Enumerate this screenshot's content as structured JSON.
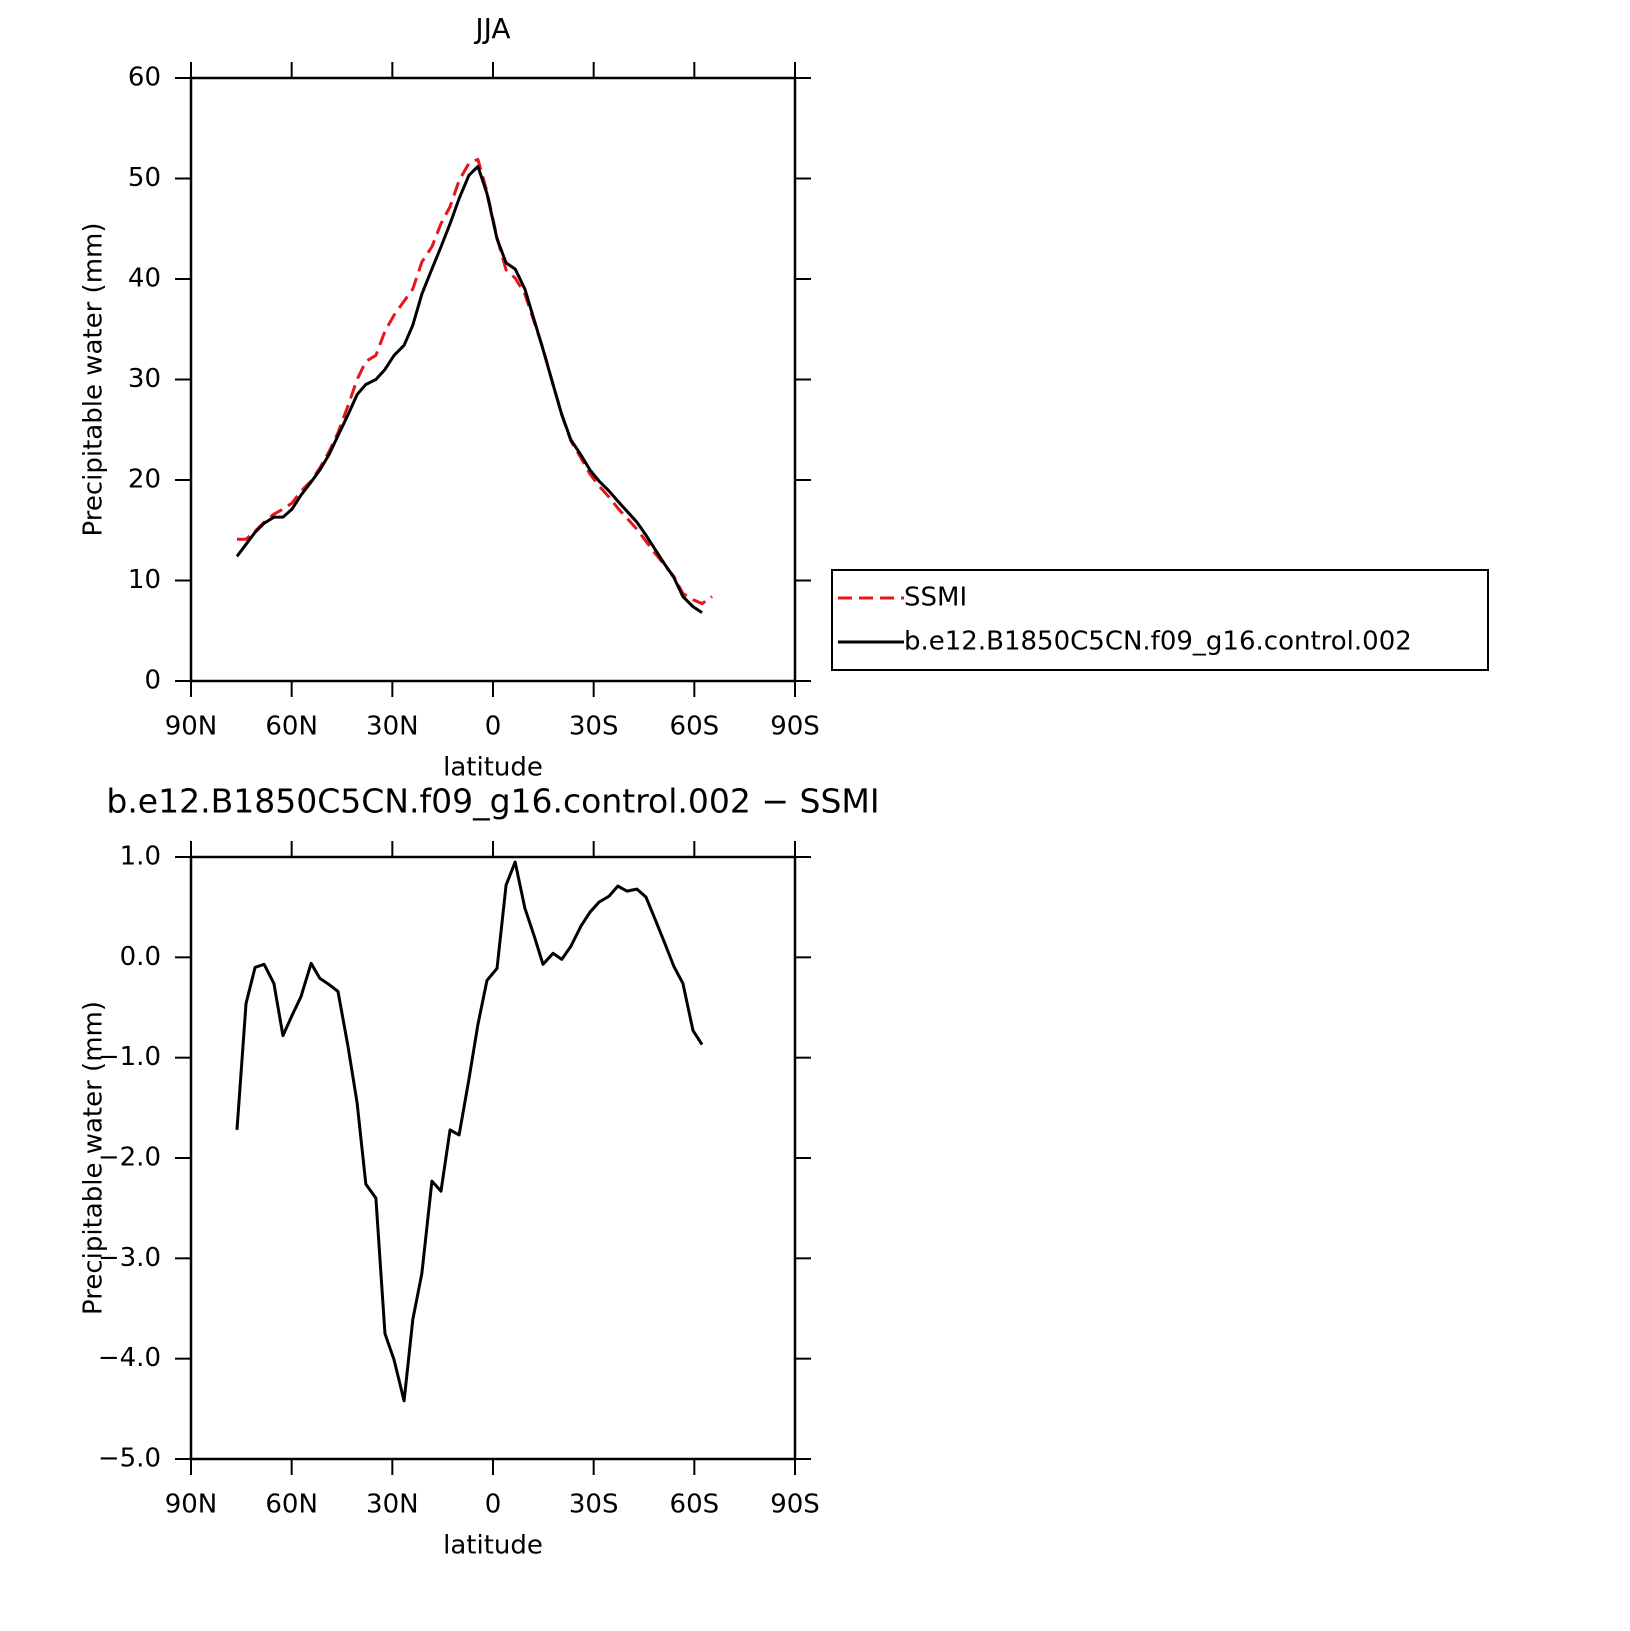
{
  "chart_data": [
    {
      "type": "line",
      "title": "JJA",
      "xlabel": "latitude",
      "ylabel": "Precipitable water (mm)",
      "xlim": [
        90,
        -90
      ],
      "xticks": [
        {
          "value": 90,
          "label": "90N"
        },
        {
          "value": 60,
          "label": "60N"
        },
        {
          "value": 30,
          "label": "30N"
        },
        0,
        {
          "value": -30,
          "label": "30S"
        },
        {
          "value": -60,
          "label": "60S"
        },
        {
          "value": -90,
          "label": "90S"
        }
      ],
      "ylim": [
        0,
        60
      ],
      "yticks": [
        0,
        10,
        20,
        30,
        40,
        50,
        60
      ],
      "legend": "right",
      "x": [
        76.3,
        73.6,
        70.9,
        68.2,
        65.3,
        62.6,
        59.9,
        57.2,
        54.2,
        51.6,
        48.9,
        46.2,
        43.2,
        40.5,
        37.9,
        34.9,
        32.2,
        29.5,
        26.5,
        23.9,
        21.2,
        18.2,
        15.5,
        12.8,
        10.1,
        7.2,
        4.5,
        1.8,
        -1.2,
        -3.9,
        -6.6,
        -9.5,
        -12.2,
        -14.9,
        -17.9,
        -20.5,
        -23.2,
        -26.2,
        -28.9,
        -31.6,
        -34.6,
        -37.2,
        -39.9,
        -42.9,
        -45.6,
        -48.3,
        -51.2,
        -53.9,
        -56.6,
        -59.6,
        -62.3,
        -65.3
      ],
      "series": [
        {
          "name": "SSMI",
          "color": "#e8141c",
          "dash": true,
          "values": [
            14.1,
            14.1,
            14.9,
            15.8,
            16.6,
            17.1,
            17.7,
            18.9,
            19.9,
            21.2,
            22.8,
            24.7,
            27.4,
            30.0,
            31.8,
            32.4,
            34.8,
            36.4,
            37.8,
            39.0,
            41.7,
            43.2,
            45.5,
            47.2,
            49.8,
            51.5,
            51.9,
            48.7,
            44.1,
            40.9,
            40.1,
            38.5,
            35.8,
            33.1,
            29.5,
            26.5,
            23.9,
            22.2,
            20.6,
            19.4,
            18.3,
            17.2,
            16.2,
            15.1,
            13.9,
            12.7,
            11.5,
            10.4,
            8.7,
            8.1,
            7.7,
            8.4
          ]
        },
        {
          "name": "b.e12.B1850C5CN.f09_g16.control.002",
          "color": "#000000",
          "dash": false,
          "values": [
            12.4,
            13.6,
            14.8,
            15.7,
            16.3,
            16.3,
            17.1,
            18.5,
            19.8,
            21.0,
            22.5,
            24.4,
            26.5,
            28.5,
            29.5,
            30.0,
            31.0,
            32.4,
            33.4,
            35.4,
            38.5,
            41.0,
            43.2,
            45.5,
            48.0,
            50.3,
            51.2,
            48.5,
            44.0,
            41.6,
            41.0,
            39.0,
            36.0,
            33.0,
            29.5,
            26.5,
            24.0,
            22.5,
            21.0,
            19.9,
            18.9,
            17.9,
            16.9,
            15.8,
            14.5,
            13.1,
            11.6,
            10.3,
            8.4,
            7.4,
            6.8,
            null
          ]
        }
      ]
    },
    {
      "type": "line",
      "title": "b.e12.B1850C5CN.f09_g16.control.002 − SSMI",
      "xlabel": "latitude",
      "ylabel": "Precipitable water (mm)",
      "xlim": [
        90,
        -90
      ],
      "xticks": [
        {
          "value": 90,
          "label": "90N"
        },
        {
          "value": 60,
          "label": "60N"
        },
        {
          "value": 30,
          "label": "30N"
        },
        0,
        {
          "value": -30,
          "label": "30S"
        },
        {
          "value": -60,
          "label": "60S"
        },
        {
          "value": -90,
          "label": "90S"
        }
      ],
      "ylim": [
        -5,
        1
      ],
      "yticks": [
        {
          "value": -5,
          "label": "−5.0"
        },
        {
          "value": -4,
          "label": "−4.0"
        },
        {
          "value": -3,
          "label": "−3.0"
        },
        {
          "value": -2,
          "label": "−2.0"
        },
        {
          "value": -1,
          "label": "−1.0"
        },
        {
          "value": 0,
          "label": "0.0"
        },
        {
          "value": 1,
          "label": "1.0"
        }
      ],
      "x": [
        76.3,
        73.6,
        70.9,
        68.2,
        65.3,
        62.6,
        59.9,
        57.2,
        54.2,
        51.6,
        48.9,
        46.2,
        43.2,
        40.5,
        37.9,
        34.9,
        32.2,
        29.5,
        26.5,
        23.9,
        21.2,
        18.2,
        15.5,
        12.8,
        10.1,
        7.2,
        4.5,
        1.8,
        -1.2,
        -3.9,
        -6.6,
        -9.5,
        -12.2,
        -14.9,
        -17.9,
        -20.5,
        -23.2,
        -26.2,
        -28.9,
        -31.6,
        -34.6,
        -37.2,
        -39.9,
        -42.9,
        -45.6,
        -48.3,
        -51.2,
        -53.9,
        -56.6,
        -59.6,
        -62.3
      ],
      "color": "#000000",
      "values": [
        -1.72,
        -0.46,
        -0.1,
        -0.07,
        -0.26,
        -0.78,
        -0.58,
        -0.39,
        -0.06,
        -0.21,
        -0.27,
        -0.34,
        -0.89,
        -1.45,
        -2.26,
        -2.4,
        -3.75,
        -4.01,
        -4.42,
        -3.61,
        -3.15,
        -2.23,
        -2.33,
        -1.72,
        -1.77,
        -1.22,
        -0.67,
        -0.23,
        -0.11,
        0.72,
        0.95,
        0.49,
        0.22,
        -0.07,
        0.04,
        -0.02,
        0.11,
        0.31,
        0.45,
        0.55,
        0.61,
        0.71,
        0.66,
        0.68,
        0.6,
        0.38,
        0.14,
        -0.09,
        -0.26,
        -0.73,
        -0.87
      ]
    }
  ]
}
